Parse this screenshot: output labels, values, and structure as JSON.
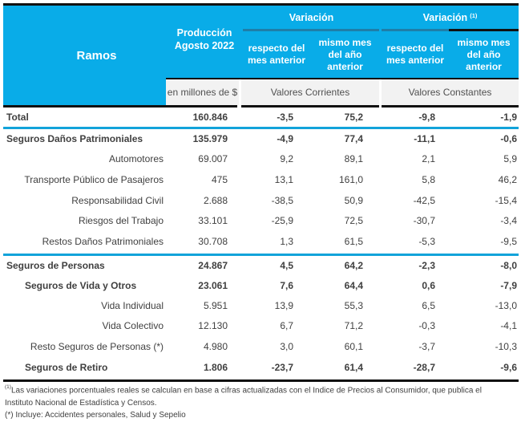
{
  "header": {
    "ramos": "Ramos",
    "produccion": "Producción Agosto 2022",
    "produccion_unit": "en millones de $",
    "variacion_nominal": "Variación",
    "variacion_real": "Variación",
    "variacion_real_note": "(1)",
    "sub_respecto": "respecto del mes anterior",
    "sub_mismo": "mismo mes del año anterior",
    "valores_corrientes": "Valores Corrientes",
    "valores_constantes": "Valores Constantes"
  },
  "colors": {
    "header_bg": "#09ace8",
    "separator_blue": "#12a3da",
    "unit_bg": "#f2f2f2"
  },
  "rows": [
    {
      "label": "Total",
      "style": "bold",
      "indent": "none",
      "produccion": "160.846",
      "cor_mes": "-3,5",
      "cor_anio": "75,2",
      "con_mes": "-9,8",
      "con_anio": "-1,9"
    },
    {
      "label": "Seguros Daños Patrimoniales",
      "style": "bold",
      "indent": "none",
      "produccion": "135.979",
      "cor_mes": "-4,9",
      "cor_anio": "77,4",
      "con_mes": "-11,1",
      "con_anio": "-0,6"
    },
    {
      "label": "Automotores",
      "style": "normal",
      "indent": "right",
      "produccion": "69.007",
      "cor_mes": "9,2",
      "cor_anio": "89,1",
      "con_mes": "2,1",
      "con_anio": "5,9"
    },
    {
      "label": "Transporte Público de Pasajeros",
      "style": "normal",
      "indent": "right",
      "produccion": "475",
      "cor_mes": "13,1",
      "cor_anio": "161,0",
      "con_mes": "5,8",
      "con_anio": "46,2"
    },
    {
      "label": "Responsabilidad Civil",
      "style": "normal",
      "indent": "right",
      "produccion": "2.688",
      "cor_mes": "-38,5",
      "cor_anio": "50,9",
      "con_mes": "-42,5",
      "con_anio": "-15,4"
    },
    {
      "label": "Riesgos del Trabajo",
      "style": "normal",
      "indent": "right",
      "produccion": "33.101",
      "cor_mes": "-25,9",
      "cor_anio": "72,5",
      "con_mes": "-30,7",
      "con_anio": "-3,4"
    },
    {
      "label": "Restos Daños Patrimoniales",
      "style": "normal",
      "indent": "right",
      "produccion": "30.708",
      "cor_mes": "1,3",
      "cor_anio": "61,5",
      "con_mes": "-5,3",
      "con_anio": "-9,5"
    },
    {
      "label": "Seguros de Personas",
      "style": "bold",
      "indent": "none",
      "produccion": "24.867",
      "cor_mes": "4,5",
      "cor_anio": "64,2",
      "con_mes": "-2,3",
      "con_anio": "-8,0"
    },
    {
      "label": "Seguros de Vida y Otros",
      "style": "bold",
      "indent": "sub",
      "produccion": "23.061",
      "cor_mes": "7,6",
      "cor_anio": "64,4",
      "con_mes": "0,6",
      "con_anio": "-7,9"
    },
    {
      "label": "Vida Individual",
      "style": "normal",
      "indent": "right",
      "produccion": "5.951",
      "cor_mes": "13,9",
      "cor_anio": "55,3",
      "con_mes": "6,5",
      "con_anio": "-13,0"
    },
    {
      "label": "Vida Colectivo",
      "style": "normal",
      "indent": "right",
      "produccion": "12.130",
      "cor_mes": "6,7",
      "cor_anio": "71,2",
      "con_mes": "-0,3",
      "con_anio": "-4,1"
    },
    {
      "label": "Resto Seguros de Personas (*)",
      "style": "normal",
      "indent": "right",
      "produccion": "4.980",
      "cor_mes": "3,0",
      "cor_anio": "60,1",
      "con_mes": "-3,7",
      "con_anio": "-10,3"
    },
    {
      "label": "Seguros de Retiro",
      "style": "bold",
      "indent": "sub",
      "produccion": "1.806",
      "cor_mes": "-23,7",
      "cor_anio": "61,4",
      "con_mes": "-28,7",
      "con_anio": "-9,6"
    }
  ],
  "footnotes": {
    "note1_marker": "(1)",
    "note1_text": "Las variaciones porcentuales reales se calculan en base a cifras actualizadas con  el Indice de Precios al Consumidor, que publica el",
    "note1_text_cont": "Instituto Nacional de Estadística y  Censos.",
    "note2": "(*) Incluye: Accidentes personales, Salud y Sepelio"
  }
}
